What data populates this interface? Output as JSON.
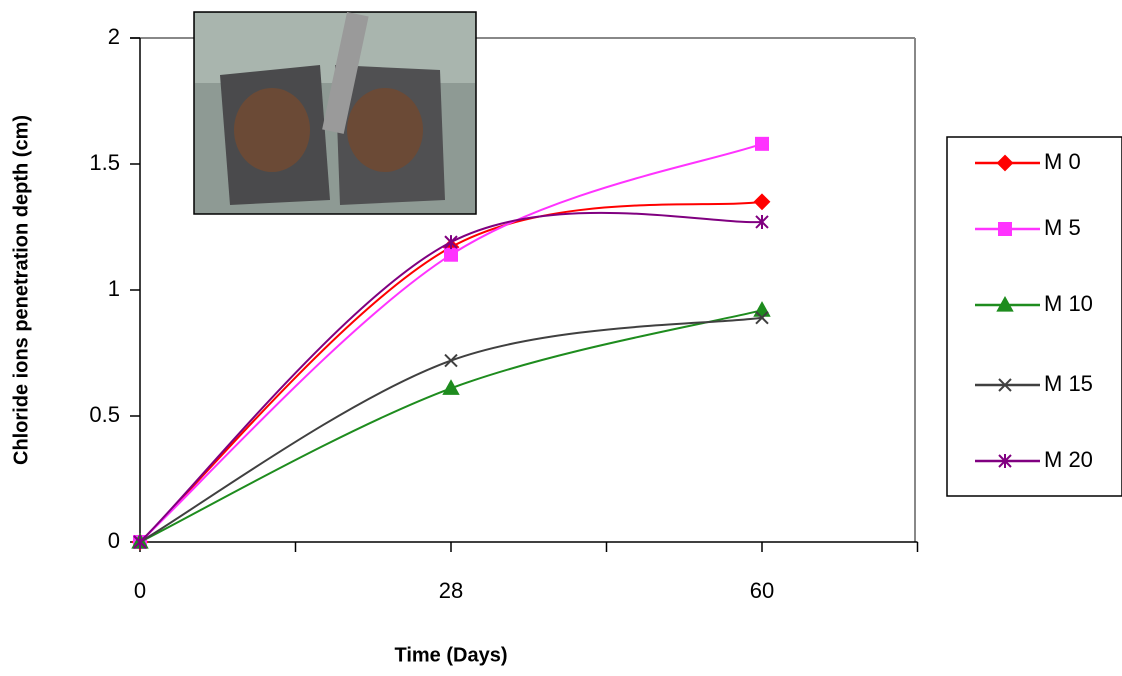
{
  "chart_data": {
    "type": "line",
    "x_label": "Time (Days)",
    "y_label": "Chloride ions penetration depth (cm)",
    "categories": [
      "0",
      "28",
      "60"
    ],
    "series": [
      {
        "name": "M 0",
        "color": "#ff0000",
        "marker": "diamond",
        "values": [
          0,
          1.17,
          1.35
        ]
      },
      {
        "name": "M 5",
        "color": "#ff33ff",
        "marker": "square",
        "values": [
          0,
          1.14,
          1.58
        ]
      },
      {
        "name": "M 10",
        "color": "#1e8c1e",
        "marker": "triangle",
        "values": [
          0,
          0.61,
          0.92
        ]
      },
      {
        "name": "M 15",
        "color": "#404040",
        "marker": "x",
        "values": [
          0,
          0.72,
          0.89
        ]
      },
      {
        "name": "M 20",
        "color": "#800080",
        "marker": "star",
        "values": [
          0,
          1.19,
          1.27
        ]
      }
    ],
    "ylim": [
      0,
      2
    ],
    "yticks": [
      0,
      0.5,
      1,
      1.5,
      2
    ],
    "smooth": true
  }
}
